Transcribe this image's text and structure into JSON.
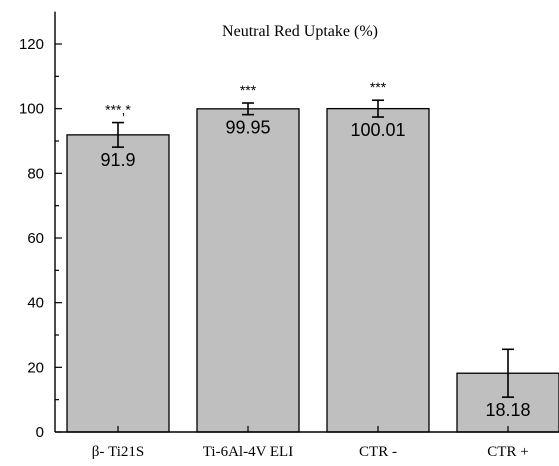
{
  "chart_data": {
    "type": "bar",
    "title": "Neutral Red Uptake (%)",
    "xlabel": "",
    "ylabel": "",
    "ylim": [
      0,
      130
    ],
    "yticks": [
      0,
      20,
      40,
      60,
      80,
      100,
      120
    ],
    "grid": false,
    "categories": [
      "β- Ti21S",
      "Ti-6Al-4V ELI",
      "CTR -",
      "CTR +"
    ],
    "values": [
      91.9,
      99.95,
      100.01,
      18.18
    ],
    "value_labels": [
      "91.9",
      "99.95",
      "100.01",
      "18.18"
    ],
    "errors": [
      3.8,
      1.8,
      2.6,
      7.4
    ],
    "significance": [
      "***,*",
      "***",
      "***",
      ""
    ],
    "colors": {
      "bar": "#bfbfbf",
      "outline": "#000000"
    }
  }
}
